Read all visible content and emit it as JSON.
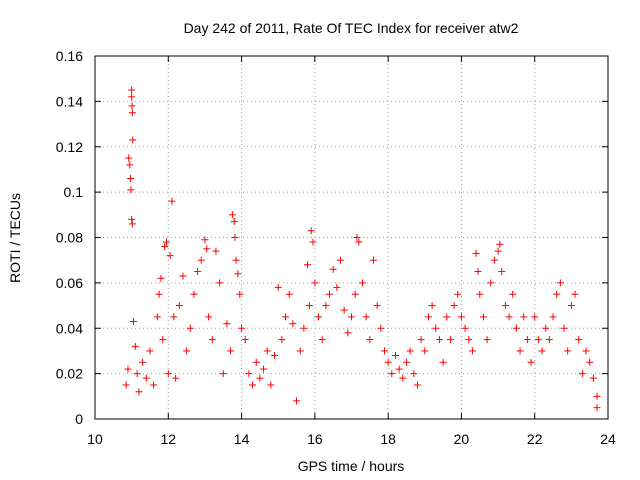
{
  "chart_data": {
    "type": "scatter",
    "title": "Day 242 of 2011, Rate Of TEC Index for receiver atw2",
    "xlabel": "GPS time / hours",
    "ylabel": "ROTI / TECUs",
    "xlim": [
      10,
      24
    ],
    "ylim": [
      0,
      0.16
    ],
    "x_ticks": [
      "10",
      "12",
      "14",
      "16",
      "18",
      "20",
      "22",
      "24"
    ],
    "y_ticks": [
      "0",
      "0.02",
      "0.04",
      "0.06",
      "0.08",
      "0.1",
      "0.12",
      "0.14",
      "0.16"
    ],
    "grid": true,
    "marker": "+",
    "color": "#ff0000",
    "series": [
      {
        "name": "ROTI",
        "points": [
          [
            10.85,
            0.015
          ],
          [
            10.9,
            0.022
          ],
          [
            10.92,
            0.115
          ],
          [
            10.95,
            0.112
          ],
          [
            10.97,
            0.106
          ],
          [
            10.98,
            0.101
          ],
          [
            11.0,
            0.145
          ],
          [
            11.0,
            0.142
          ],
          [
            11.01,
            0.138
          ],
          [
            11.02,
            0.135
          ],
          [
            11.03,
            0.123
          ],
          [
            11.0,
            0.088
          ],
          [
            11.02,
            0.086
          ],
          [
            11.05,
            0.043
          ],
          [
            11.1,
            0.032
          ],
          [
            11.15,
            0.02
          ],
          [
            11.2,
            0.012
          ],
          [
            11.3,
            0.025
          ],
          [
            11.4,
            0.018
          ],
          [
            11.5,
            0.03
          ],
          [
            11.6,
            0.015
          ],
          [
            11.7,
            0.045
          ],
          [
            11.75,
            0.055
          ],
          [
            11.8,
            0.062
          ],
          [
            11.85,
            0.035
          ],
          [
            11.9,
            0.076
          ],
          [
            11.95,
            0.078
          ],
          [
            12.0,
            0.02
          ],
          [
            12.05,
            0.072
          ],
          [
            12.1,
            0.096
          ],
          [
            12.15,
            0.045
          ],
          [
            12.2,
            0.018
          ],
          [
            12.3,
            0.05
          ],
          [
            12.4,
            0.063
          ],
          [
            12.5,
            0.03
          ],
          [
            12.6,
            0.04
          ],
          [
            12.7,
            0.055
          ],
          [
            12.8,
            0.065
          ],
          [
            12.9,
            0.07
          ],
          [
            13.0,
            0.079
          ],
          [
            13.05,
            0.075
          ],
          [
            13.1,
            0.045
          ],
          [
            13.2,
            0.035
          ],
          [
            13.3,
            0.074
          ],
          [
            13.4,
            0.06
          ],
          [
            13.5,
            0.02
          ],
          [
            13.6,
            0.042
          ],
          [
            13.7,
            0.03
          ],
          [
            13.75,
            0.09
          ],
          [
            13.8,
            0.087
          ],
          [
            13.82,
            0.08
          ],
          [
            13.85,
            0.07
          ],
          [
            13.9,
            0.064
          ],
          [
            13.95,
            0.055
          ],
          [
            14.0,
            0.04
          ],
          [
            14.1,
            0.035
          ],
          [
            14.2,
            0.02
          ],
          [
            14.3,
            0.015
          ],
          [
            14.4,
            0.025
          ],
          [
            14.5,
            0.018
          ],
          [
            14.6,
            0.022
          ],
          [
            14.7,
            0.03
          ],
          [
            14.8,
            0.015
          ],
          [
            14.9,
            0.028
          ],
          [
            15.0,
            0.058
          ],
          [
            15.1,
            0.035
          ],
          [
            15.2,
            0.045
          ],
          [
            15.3,
            0.055
          ],
          [
            15.4,
            0.042
          ],
          [
            15.5,
            0.008
          ],
          [
            15.6,
            0.03
          ],
          [
            15.7,
            0.04
          ],
          [
            15.8,
            0.068
          ],
          [
            15.85,
            0.05
          ],
          [
            15.9,
            0.083
          ],
          [
            15.95,
            0.078
          ],
          [
            16.0,
            0.06
          ],
          [
            16.1,
            0.045
          ],
          [
            16.2,
            0.035
          ],
          [
            16.3,
            0.05
          ],
          [
            16.4,
            0.055
          ],
          [
            16.5,
            0.066
          ],
          [
            16.6,
            0.058
          ],
          [
            16.7,
            0.07
          ],
          [
            16.8,
            0.048
          ],
          [
            16.9,
            0.038
          ],
          [
            17.0,
            0.045
          ],
          [
            17.1,
            0.055
          ],
          [
            17.15,
            0.08
          ],
          [
            17.2,
            0.078
          ],
          [
            17.3,
            0.06
          ],
          [
            17.4,
            0.045
          ],
          [
            17.5,
            0.035
          ],
          [
            17.6,
            0.07
          ],
          [
            17.7,
            0.05
          ],
          [
            17.8,
            0.04
          ],
          [
            17.9,
            0.03
          ],
          [
            18.0,
            0.025
          ],
          [
            18.1,
            0.02
          ],
          [
            18.2,
            0.028
          ],
          [
            18.3,
            0.022
          ],
          [
            18.4,
            0.018
          ],
          [
            18.5,
            0.025
          ],
          [
            18.6,
            0.03
          ],
          [
            18.7,
            0.02
          ],
          [
            18.8,
            0.015
          ],
          [
            18.9,
            0.035
          ],
          [
            19.0,
            0.03
          ],
          [
            19.1,
            0.045
          ],
          [
            19.2,
            0.05
          ],
          [
            19.3,
            0.04
          ],
          [
            19.4,
            0.035
          ],
          [
            19.5,
            0.025
          ],
          [
            19.6,
            0.045
          ],
          [
            19.7,
            0.035
          ],
          [
            19.8,
            0.05
          ],
          [
            19.9,
            0.055
          ],
          [
            20.0,
            0.045
          ],
          [
            20.1,
            0.04
          ],
          [
            20.2,
            0.035
          ],
          [
            20.3,
            0.03
          ],
          [
            20.4,
            0.073
          ],
          [
            20.45,
            0.065
          ],
          [
            20.5,
            0.055
          ],
          [
            20.6,
            0.045
          ],
          [
            20.7,
            0.035
          ],
          [
            20.8,
            0.06
          ],
          [
            20.9,
            0.07
          ],
          [
            21.0,
            0.074
          ],
          [
            21.05,
            0.077
          ],
          [
            21.1,
            0.065
          ],
          [
            21.2,
            0.05
          ],
          [
            21.3,
            0.045
          ],
          [
            21.4,
            0.055
          ],
          [
            21.5,
            0.04
          ],
          [
            21.6,
            0.03
          ],
          [
            21.7,
            0.045
          ],
          [
            21.8,
            0.035
          ],
          [
            21.9,
            0.025
          ],
          [
            22.0,
            0.045
          ],
          [
            22.1,
            0.035
          ],
          [
            22.2,
            0.03
          ],
          [
            22.3,
            0.04
          ],
          [
            22.4,
            0.035
          ],
          [
            22.5,
            0.045
          ],
          [
            22.6,
            0.055
          ],
          [
            22.7,
            0.06
          ],
          [
            22.8,
            0.04
          ],
          [
            22.9,
            0.03
          ],
          [
            23.0,
            0.05
          ],
          [
            23.1,
            0.055
          ],
          [
            23.2,
            0.035
          ],
          [
            23.3,
            0.02
          ],
          [
            23.4,
            0.03
          ],
          [
            23.5,
            0.025
          ],
          [
            23.6,
            0.018
          ],
          [
            23.7,
            0.005
          ],
          [
            23.7,
            0.01
          ]
        ]
      }
    ]
  }
}
